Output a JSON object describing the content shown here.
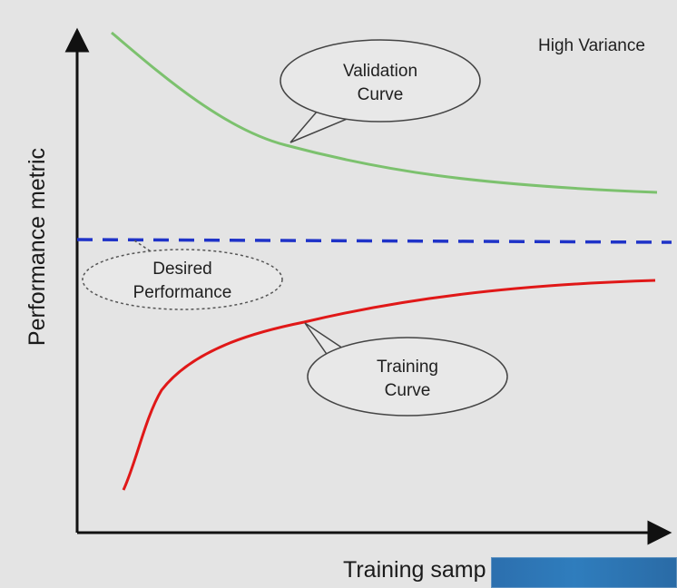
{
  "title": "High Variance",
  "y_axis_label": "Performance metric",
  "x_axis_label": "Training samp",
  "annotations": {
    "validation": [
      "Validation",
      "Curve"
    ],
    "desired": [
      "Desired",
      "Performance"
    ],
    "training": [
      "Training",
      "Curve"
    ]
  },
  "colors": {
    "validation_curve": "#7cc16e",
    "training_curve": "#e01818",
    "desired_line": "#1f33c8",
    "axis": "#111111"
  }
}
